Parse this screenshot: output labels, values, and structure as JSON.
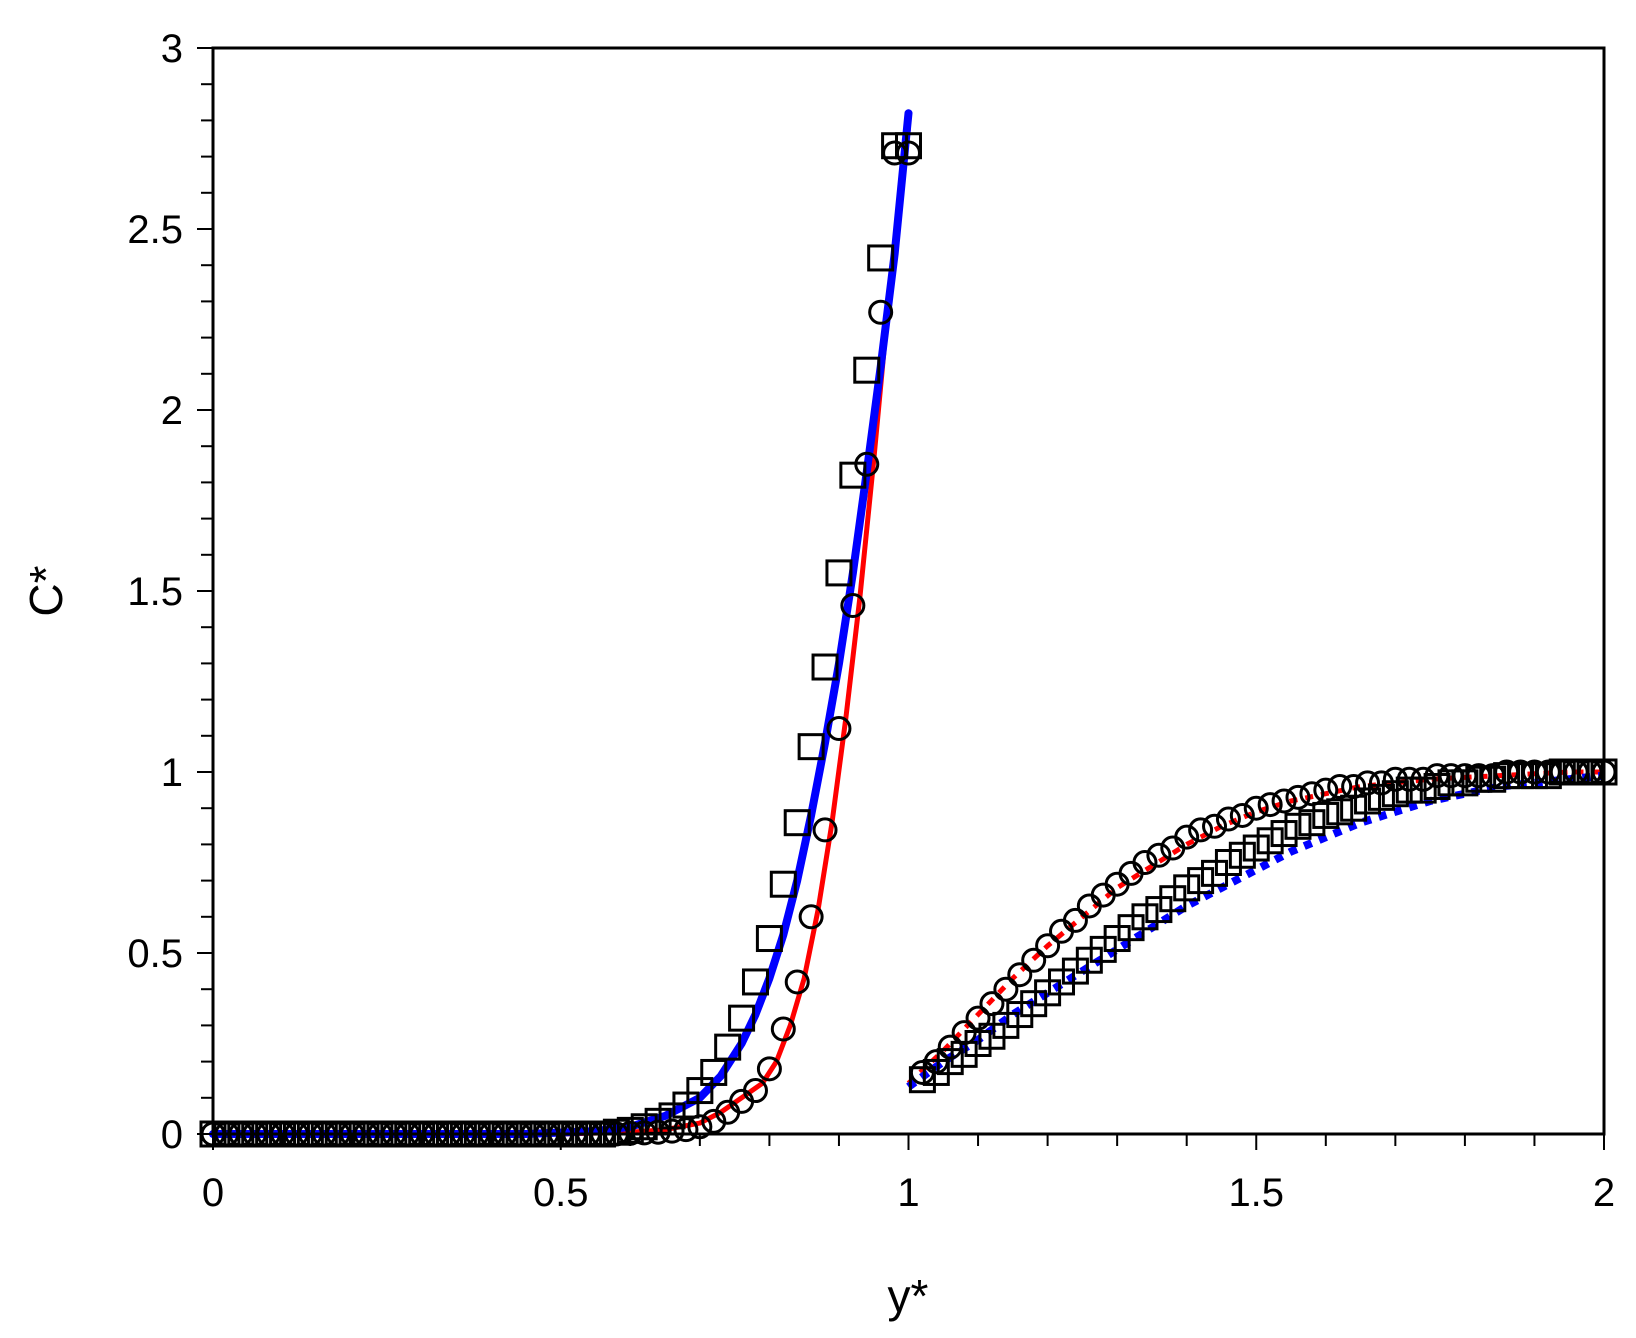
{
  "chart_data": {
    "type": "scatter",
    "xlabel": "y*",
    "ylabel": "C*",
    "xlim": [
      0,
      2
    ],
    "ylim": [
      0,
      3
    ],
    "xticks": [
      "0",
      "0.5",
      "1",
      "1.5",
      "2"
    ],
    "yticks": [
      "0",
      "0.5",
      "1",
      "1.5",
      "2",
      "2.5",
      "3"
    ],
    "grid": false,
    "legend": "none",
    "colors": {
      "red": "#ff0000",
      "blue": "#0000ff",
      "marker": "#000000",
      "axis": "#000000"
    },
    "series": [
      {
        "line": "solid",
        "color": "red",
        "x": [
          0,
          0.5,
          0.6,
          0.65,
          0.7,
          0.73,
          0.76,
          0.79,
          0.81,
          0.83,
          0.85,
          0.87,
          0.89,
          0.91,
          0.93,
          0.95,
          0.97,
          0.99,
          1.0
        ],
        "y": [
          0,
          0,
          0.005,
          0.012,
          0.03,
          0.06,
          0.1,
          0.14,
          0.2,
          0.3,
          0.43,
          0.62,
          0.86,
          1.15,
          1.48,
          1.86,
          2.27,
          2.62,
          2.78
        ]
      },
      {
        "line": "solid",
        "color": "blue",
        "x": [
          0,
          0.45,
          0.55,
          0.6,
          0.65,
          0.7,
          0.73,
          0.76,
          0.78,
          0.8,
          0.82,
          0.84,
          0.86,
          0.88,
          0.9,
          0.92,
          0.94,
          0.96,
          0.98,
          1.0
        ],
        "y": [
          0,
          0,
          0.008,
          0.02,
          0.05,
          0.1,
          0.16,
          0.25,
          0.33,
          0.43,
          0.55,
          0.7,
          0.88,
          1.08,
          1.3,
          1.55,
          1.83,
          2.12,
          2.43,
          2.82
        ]
      },
      {
        "line": "dashed",
        "color": "red",
        "x": [
          1.0,
          1.05,
          1.1,
          1.15,
          1.2,
          1.25,
          1.3,
          1.35,
          1.4,
          1.45,
          1.5,
          1.55,
          1.6,
          1.65,
          1.7,
          1.75,
          1.8,
          1.85,
          1.9,
          1.95,
          2.0
        ],
        "y": [
          0.14,
          0.23,
          0.33,
          0.43,
          0.52,
          0.6,
          0.68,
          0.74,
          0.8,
          0.85,
          0.89,
          0.92,
          0.94,
          0.96,
          0.97,
          0.98,
          0.985,
          0.99,
          0.995,
          1.0,
          1.0
        ]
      },
      {
        "line": "dashed",
        "color": "blue",
        "x": [
          1.0,
          1.05,
          1.1,
          1.15,
          1.2,
          1.25,
          1.3,
          1.35,
          1.4,
          1.45,
          1.5,
          1.55,
          1.6,
          1.65,
          1.7,
          1.75,
          1.8,
          1.85,
          1.9,
          1.95,
          2.0
        ],
        "y": [
          0.13,
          0.2,
          0.26,
          0.33,
          0.39,
          0.45,
          0.51,
          0.57,
          0.63,
          0.68,
          0.73,
          0.78,
          0.82,
          0.86,
          0.89,
          0.92,
          0.94,
          0.96,
          0.97,
          0.98,
          0.99
        ]
      },
      {
        "marker": "circle",
        "x": [
          0,
          0.02,
          0.04,
          0.06,
          0.08,
          0.1,
          0.12,
          0.14,
          0.16,
          0.18,
          0.2,
          0.22,
          0.24,
          0.26,
          0.28,
          0.3,
          0.32,
          0.34,
          0.36,
          0.38,
          0.4,
          0.42,
          0.44,
          0.46,
          0.48,
          0.5,
          0.52,
          0.54,
          0.56,
          0.58,
          0.6,
          0.62,
          0.64,
          0.66,
          0.68,
          0.7,
          0.72,
          0.74,
          0.76,
          0.78,
          0.8,
          0.82,
          0.84,
          0.86,
          0.88,
          0.9,
          0.92,
          0.94,
          0.96,
          0.98,
          1.0,
          1.02,
          1.04,
          1.06,
          1.08,
          1.1,
          1.12,
          1.14,
          1.16,
          1.18,
          1.2,
          1.22,
          1.24,
          1.26,
          1.28,
          1.3,
          1.32,
          1.34,
          1.36,
          1.38,
          1.4,
          1.42,
          1.44,
          1.46,
          1.48,
          1.5,
          1.52,
          1.54,
          1.56,
          1.58,
          1.6,
          1.62,
          1.64,
          1.66,
          1.68,
          1.7,
          1.72,
          1.74,
          1.76,
          1.78,
          1.8,
          1.82,
          1.84,
          1.86,
          1.88,
          1.9,
          1.92,
          1.94,
          1.96,
          1.98,
          2.0
        ],
        "y": [
          0,
          0,
          0,
          0,
          0,
          0,
          0,
          0,
          0,
          0,
          0,
          0,
          0,
          0,
          0,
          0,
          0,
          0,
          0,
          0,
          0,
          0,
          0,
          0,
          0,
          0,
          0,
          0,
          0,
          0,
          0.002,
          0.003,
          0.005,
          0.008,
          0.012,
          0.02,
          0.035,
          0.06,
          0.09,
          0.12,
          0.18,
          0.29,
          0.42,
          0.6,
          0.84,
          1.12,
          1.46,
          1.85,
          2.27,
          2.71,
          2.71,
          0.17,
          0.2,
          0.24,
          0.28,
          0.32,
          0.36,
          0.4,
          0.44,
          0.48,
          0.52,
          0.56,
          0.59,
          0.63,
          0.66,
          0.69,
          0.72,
          0.75,
          0.77,
          0.79,
          0.82,
          0.84,
          0.85,
          0.87,
          0.88,
          0.9,
          0.91,
          0.92,
          0.93,
          0.94,
          0.95,
          0.96,
          0.96,
          0.97,
          0.97,
          0.98,
          0.98,
          0.98,
          0.99,
          0.99,
          0.99,
          0.99,
          0.99,
          1.0,
          1.0,
          1.0,
          1.0,
          1.0,
          1.0,
          1.0,
          1.0
        ]
      },
      {
        "marker": "square",
        "x": [
          0,
          0.02,
          0.04,
          0.06,
          0.08,
          0.1,
          0.12,
          0.14,
          0.16,
          0.18,
          0.2,
          0.22,
          0.24,
          0.26,
          0.28,
          0.3,
          0.32,
          0.34,
          0.36,
          0.38,
          0.4,
          0.42,
          0.44,
          0.46,
          0.48,
          0.5,
          0.52,
          0.54,
          0.56,
          0.58,
          0.6,
          0.62,
          0.64,
          0.66,
          0.68,
          0.7,
          0.72,
          0.74,
          0.76,
          0.78,
          0.8,
          0.82,
          0.84,
          0.86,
          0.88,
          0.9,
          0.92,
          0.94,
          0.96,
          0.98,
          1.0,
          1.02,
          1.04,
          1.06,
          1.08,
          1.1,
          1.12,
          1.14,
          1.16,
          1.18,
          1.2,
          1.22,
          1.24,
          1.26,
          1.28,
          1.3,
          1.32,
          1.34,
          1.36,
          1.38,
          1.4,
          1.42,
          1.44,
          1.46,
          1.48,
          1.5,
          1.52,
          1.54,
          1.56,
          1.58,
          1.6,
          1.62,
          1.64,
          1.66,
          1.68,
          1.7,
          1.72,
          1.74,
          1.76,
          1.78,
          1.8,
          1.82,
          1.84,
          1.86,
          1.88,
          1.9,
          1.92,
          1.94,
          1.96,
          1.98,
          2.0
        ],
        "y": [
          0,
          0,
          0,
          0,
          0,
          0,
          0,
          0,
          0,
          0,
          0,
          0,
          0,
          0,
          0,
          0,
          0,
          0,
          0,
          0,
          0,
          0,
          0,
          0,
          0,
          0,
          0,
          0,
          0,
          0.005,
          0.01,
          0.02,
          0.035,
          0.05,
          0.08,
          0.12,
          0.17,
          0.24,
          0.32,
          0.42,
          0.54,
          0.69,
          0.86,
          1.07,
          1.29,
          1.55,
          1.82,
          2.11,
          2.42,
          2.73,
          2.73,
          0.15,
          0.17,
          0.2,
          0.22,
          0.25,
          0.27,
          0.3,
          0.33,
          0.36,
          0.39,
          0.42,
          0.45,
          0.48,
          0.51,
          0.54,
          0.57,
          0.6,
          0.62,
          0.65,
          0.68,
          0.7,
          0.72,
          0.75,
          0.77,
          0.79,
          0.81,
          0.83,
          0.85,
          0.86,
          0.88,
          0.89,
          0.9,
          0.92,
          0.93,
          0.94,
          0.95,
          0.95,
          0.96,
          0.97,
          0.97,
          0.98,
          0.98,
          0.99,
          0.99,
          0.99,
          0.99,
          1.0,
          1.0,
          1.0,
          1.0
        ]
      }
    ]
  }
}
